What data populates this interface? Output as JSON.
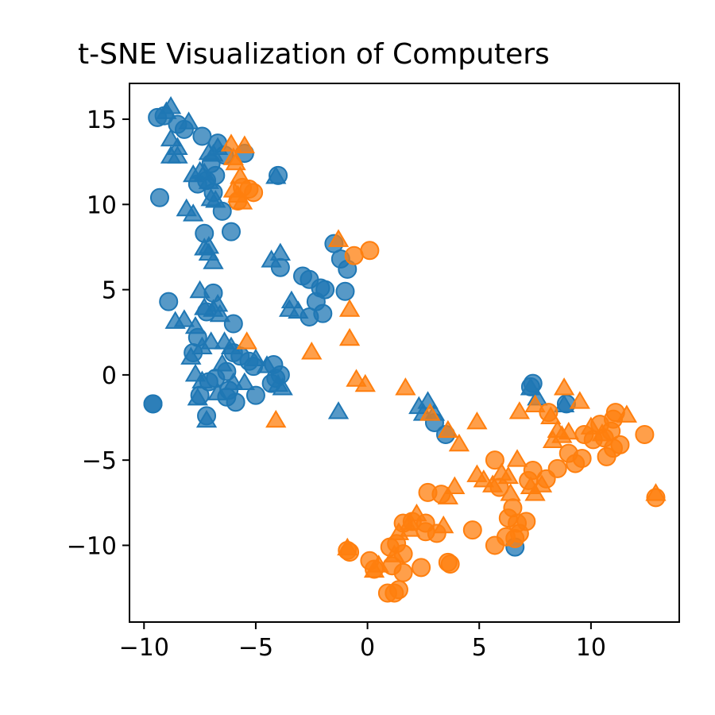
{
  "chart_data": {
    "type": "scatter",
    "title": "t-SNE Visualization of Computers",
    "xlabel": "",
    "ylabel": "",
    "xlim": [
      -10.65,
      13.95
    ],
    "ylim": [
      -14.5,
      17.1
    ],
    "xticks": [
      -10,
      -5,
      0,
      5,
      10
    ],
    "yticks": [
      -10,
      -5,
      0,
      5,
      10,
      15
    ],
    "xtick_labels": [
      "−10",
      "−5",
      "0",
      "5",
      "10"
    ],
    "ytick_labels": [
      "−10",
      "−5",
      "0",
      "5",
      "10",
      "15"
    ],
    "grid": false,
    "legend": false,
    "colors": {
      "blue": "#1f77b4",
      "orange": "#ff7f0e"
    },
    "series": [
      {
        "color": "blue",
        "marker": "circle",
        "points": [
          [
            -9.4,
            15.1
          ],
          [
            -9.1,
            15.2
          ],
          [
            -8.5,
            14.7
          ],
          [
            -8.2,
            14.4
          ],
          [
            -7.4,
            14.0
          ],
          [
            -6.7,
            13.6
          ],
          [
            -6.4,
            12.9
          ],
          [
            -5.5,
            13.0
          ],
          [
            -7.0,
            12.4
          ],
          [
            -6.8,
            11.7
          ],
          [
            -7.6,
            11.2
          ],
          [
            -7.2,
            11.4
          ],
          [
            -6.9,
            10.7
          ],
          [
            -9.3,
            10.4
          ],
          [
            -6.5,
            9.6
          ],
          [
            -7.3,
            8.3
          ],
          [
            -6.1,
            8.4
          ],
          [
            -4.0,
            11.7
          ],
          [
            -1.5,
            7.7
          ],
          [
            -0.9,
            6.2
          ],
          [
            -1.2,
            6.8
          ],
          [
            -3.9,
            6.3
          ],
          [
            -2.9,
            5.8
          ],
          [
            -2.6,
            5.6
          ],
          [
            -2.1,
            5.1
          ],
          [
            -1.9,
            5.0
          ],
          [
            -1.0,
            4.9
          ],
          [
            -2.3,
            4.3
          ],
          [
            -2.0,
            3.6
          ],
          [
            -2.6,
            3.4
          ],
          [
            -8.9,
            4.3
          ],
          [
            -6.9,
            4.8
          ],
          [
            -7.2,
            3.7
          ],
          [
            -7.6,
            2.2
          ],
          [
            -6.0,
            3.0
          ],
          [
            -7.8,
            1.3
          ],
          [
            -5.7,
            1.1
          ],
          [
            -5.3,
            0.8
          ],
          [
            -5.1,
            0.5
          ],
          [
            -4.2,
            0.6
          ],
          [
            -3.9,
            0.0
          ],
          [
            -6.0,
            1.3
          ],
          [
            -6.3,
            0.2
          ],
          [
            -7.1,
            -0.4
          ],
          [
            -6.8,
            -0.2
          ],
          [
            -6.2,
            -0.9
          ],
          [
            -6.3,
            -1.3
          ],
          [
            -5.9,
            -1.6
          ],
          [
            -5.0,
            -1.2
          ],
          [
            -4.3,
            -0.5
          ],
          [
            -4.1,
            -0.2
          ],
          [
            -7.5,
            -1.2
          ],
          [
            -7.2,
            -2.4
          ],
          [
            -9.6,
            -1.7
          ],
          [
            3.0,
            -2.8
          ],
          [
            3.5,
            -3.5
          ],
          [
            7.3,
            -0.7
          ],
          [
            7.4,
            -0.5
          ],
          [
            8.9,
            -1.7
          ],
          [
            6.6,
            -10.1
          ],
          [
            -9.6,
            -1.7
          ]
        ]
      },
      {
        "color": "blue",
        "marker": "triangle",
        "points": [
          [
            -9.0,
            15.4
          ],
          [
            -8.8,
            15.7
          ],
          [
            -8.0,
            14.8
          ],
          [
            -8.8,
            13.8
          ],
          [
            -8.5,
            13.3
          ],
          [
            -8.8,
            12.8
          ],
          [
            -8.5,
            12.8
          ],
          [
            -7.1,
            13.0
          ],
          [
            -6.9,
            12.9
          ],
          [
            -6.7,
            13.3
          ],
          [
            -7.8,
            11.7
          ],
          [
            -7.5,
            11.9
          ],
          [
            -7.3,
            11.8
          ],
          [
            -7.1,
            11.3
          ],
          [
            -7.0,
            10.3
          ],
          [
            -6.8,
            10.2
          ],
          [
            -8.1,
            9.7
          ],
          [
            -7.8,
            9.4
          ],
          [
            -7.3,
            7.4
          ],
          [
            -7.1,
            7.1
          ],
          [
            -6.9,
            6.6
          ],
          [
            -7.1,
            7.5
          ],
          [
            -4.3,
            6.7
          ],
          [
            -3.9,
            7.1
          ],
          [
            -3.4,
            4.3
          ],
          [
            -3.5,
            3.8
          ],
          [
            -3.1,
            3.7
          ],
          [
            -8.6,
            3.1
          ],
          [
            -8.2,
            3.2
          ],
          [
            -7.7,
            2.8
          ],
          [
            -7.3,
            3.9
          ],
          [
            -6.9,
            3.8
          ],
          [
            -7.5,
            4.9
          ],
          [
            -6.7,
            4.1
          ],
          [
            -6.6,
            3.5
          ],
          [
            -6.4,
            1.9
          ],
          [
            -6.1,
            1.6
          ],
          [
            -7.9,
            1.0
          ],
          [
            -7.4,
            1.6
          ],
          [
            -7.0,
            1.9
          ],
          [
            -7.7,
            0.0
          ],
          [
            -7.4,
            -0.4
          ],
          [
            -7.6,
            -1.4
          ],
          [
            -7.2,
            -2.7
          ],
          [
            -6.7,
            -1.1
          ],
          [
            -6.5,
            0.6
          ],
          [
            -6.0,
            -0.5
          ],
          [
            -5.5,
            -0.5
          ],
          [
            -4.5,
            0.5
          ],
          [
            -5.0,
            0.9
          ],
          [
            -4.0,
            -0.6
          ],
          [
            -3.8,
            -0.8
          ],
          [
            -1.3,
            -2.2
          ],
          [
            2.3,
            -1.9
          ],
          [
            2.5,
            -2.3
          ],
          [
            2.7,
            -1.6
          ],
          [
            3.0,
            -2.3
          ],
          [
            7.3,
            -0.8
          ],
          [
            7.6,
            -1.4
          ],
          [
            8.8,
            -1.8
          ],
          [
            -4.1,
            11.6
          ]
        ]
      },
      {
        "color": "orange",
        "marker": "circle",
        "points": [
          [
            -5.6,
            11.0
          ],
          [
            -5.3,
            10.9
          ],
          [
            -5.1,
            10.7
          ],
          [
            -5.8,
            10.2
          ],
          [
            -0.6,
            7.0
          ],
          [
            0.1,
            7.3
          ],
          [
            -0.9,
            -10.3
          ],
          [
            -0.8,
            -10.4
          ],
          [
            0.1,
            -10.9
          ],
          [
            0.3,
            -11.4
          ],
          [
            0.9,
            -12.8
          ],
          [
            1.2,
            -12.8
          ],
          [
            1.4,
            -12.6
          ],
          [
            1.1,
            -11.2
          ],
          [
            1.6,
            -11.6
          ],
          [
            1.0,
            -10.1
          ],
          [
            1.3,
            -9.9
          ],
          [
            1.6,
            -10.5
          ],
          [
            2.4,
            -11.3
          ],
          [
            3.6,
            -11.0
          ],
          [
            3.7,
            -11.1
          ],
          [
            1.6,
            -8.7
          ],
          [
            2.0,
            -8.6
          ],
          [
            2.6,
            -9.2
          ],
          [
            2.6,
            -8.7
          ],
          [
            3.1,
            -9.3
          ],
          [
            3.3,
            -7.0
          ],
          [
            2.7,
            -6.9
          ],
          [
            4.7,
            -9.1
          ],
          [
            5.7,
            -5.0
          ],
          [
            5.9,
            -6.6
          ],
          [
            5.7,
            -10.0
          ],
          [
            6.2,
            -9.5
          ],
          [
            6.3,
            -8.4
          ],
          [
            6.5,
            -7.8
          ],
          [
            6.7,
            -8.7
          ],
          [
            6.6,
            -9.6
          ],
          [
            6.8,
            -9.3
          ],
          [
            7.1,
            -8.6
          ],
          [
            7.2,
            -6.2
          ],
          [
            8.0,
            -6.1
          ],
          [
            7.4,
            -5.6
          ],
          [
            8.5,
            -5.5
          ],
          [
            9.0,
            -4.6
          ],
          [
            9.3,
            -5.2
          ],
          [
            9.6,
            -4.9
          ],
          [
            9.7,
            -3.5
          ],
          [
            10.1,
            -3.8
          ],
          [
            10.6,
            -3.7
          ],
          [
            10.9,
            -3.3
          ],
          [
            11.0,
            -2.6
          ],
          [
            11.1,
            -2.2
          ],
          [
            10.7,
            -4.8
          ],
          [
            11.3,
            -4.1
          ],
          [
            11.0,
            -4.3
          ],
          [
            12.4,
            -3.5
          ],
          [
            10.4,
            -2.9
          ],
          [
            12.9,
            -7.2
          ],
          [
            8.1,
            -2.2
          ]
        ]
      },
      {
        "color": "orange",
        "marker": "triangle",
        "points": [
          [
            -6.1,
            13.5
          ],
          [
            -5.5,
            13.4
          ],
          [
            -6.0,
            12.7
          ],
          [
            -5.9,
            12.4
          ],
          [
            -5.7,
            11.6
          ],
          [
            -6.0,
            10.8
          ],
          [
            -5.8,
            10.5
          ],
          [
            -5.6,
            10.1
          ],
          [
            -1.3,
            7.9
          ],
          [
            -0.8,
            3.8
          ],
          [
            -0.8,
            2.1
          ],
          [
            -2.5,
            1.3
          ],
          [
            -5.4,
            1.9
          ],
          [
            -4.1,
            -2.7
          ],
          [
            -0.5,
            -0.3
          ],
          [
            -0.1,
            -0.6
          ],
          [
            1.7,
            -0.8
          ],
          [
            2.8,
            -2.3
          ],
          [
            3.6,
            -3.3
          ],
          [
            4.1,
            -4.1
          ],
          [
            4.9,
            -2.8
          ],
          [
            3.9,
            -6.6
          ],
          [
            3.6,
            -7.2
          ],
          [
            3.4,
            -8.9
          ],
          [
            1.9,
            -8.7
          ],
          [
            2.2,
            -8.2
          ],
          [
            1.9,
            -9.1
          ],
          [
            1.4,
            -9.3
          ],
          [
            1.2,
            -10.6
          ],
          [
            0.3,
            -11.5
          ],
          [
            0.5,
            -11.2
          ],
          [
            -0.9,
            -10.2
          ],
          [
            4.9,
            -5.9
          ],
          [
            5.2,
            -6.2
          ],
          [
            5.6,
            -6.5
          ],
          [
            6.0,
            -5.8
          ],
          [
            6.3,
            -6.0
          ],
          [
            6.4,
            -7.0
          ],
          [
            6.7,
            -5.0
          ],
          [
            7.3,
            -6.6
          ],
          [
            7.5,
            -7.0
          ],
          [
            7.8,
            -6.5
          ],
          [
            6.8,
            -2.2
          ],
          [
            7.5,
            -1.8
          ],
          [
            8.2,
            -2.5
          ],
          [
            8.8,
            -0.8
          ],
          [
            8.5,
            -3.3
          ],
          [
            8.3,
            -3.9
          ],
          [
            8.7,
            -3.6
          ],
          [
            9.0,
            -3.4
          ],
          [
            9.5,
            -1.6
          ],
          [
            10.0,
            -3.1
          ],
          [
            10.5,
            -3.5
          ],
          [
            11.6,
            -2.4
          ],
          [
            12.9,
            -7.0
          ]
        ]
      }
    ]
  }
}
